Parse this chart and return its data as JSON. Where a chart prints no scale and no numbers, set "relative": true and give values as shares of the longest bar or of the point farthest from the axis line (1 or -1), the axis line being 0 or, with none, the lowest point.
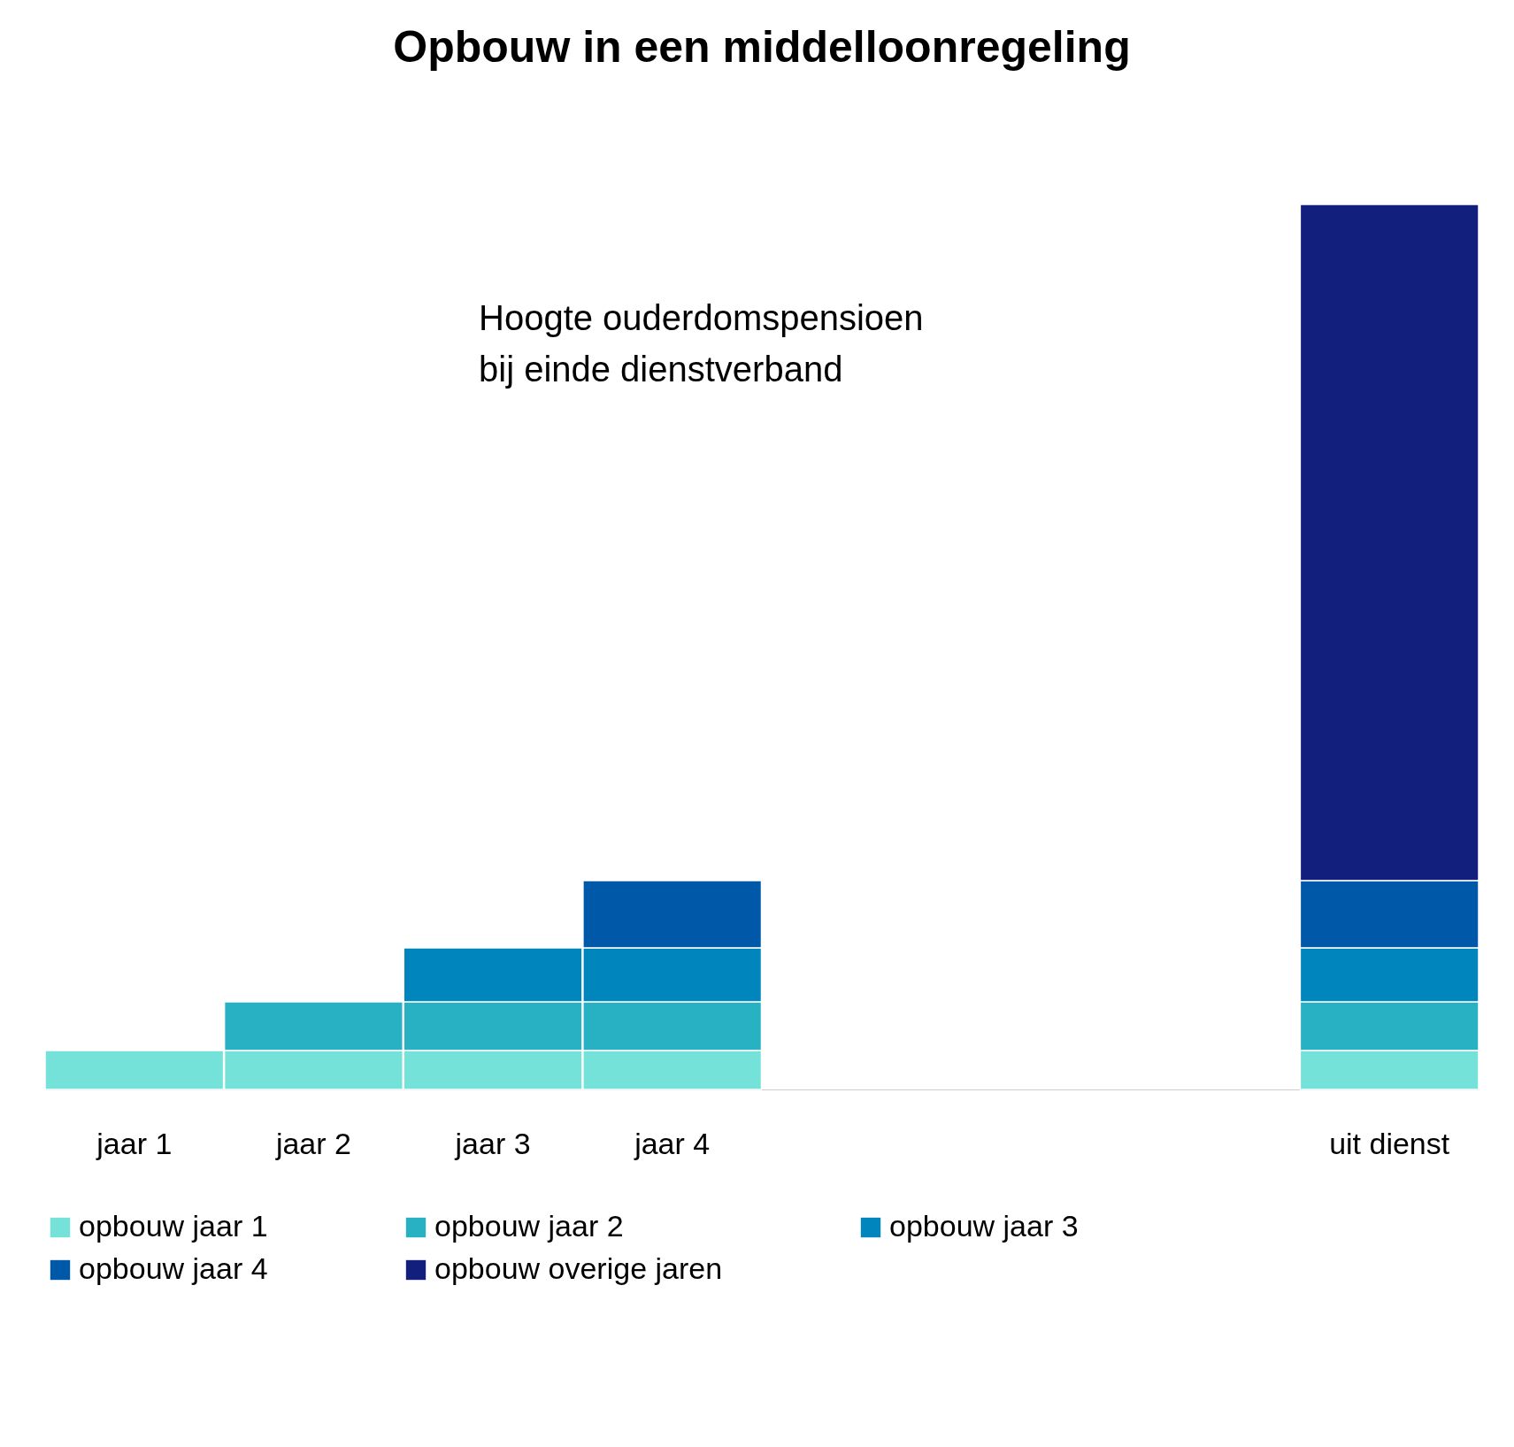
{
  "chart_data": {
    "type": "bar",
    "title": "Opbouw in een middelloonregeling",
    "annotations": [
      "Hoogte ouderdomspensioen\nbij einde dienstverband"
    ],
    "categories": [
      "jaar 1",
      "jaar 2",
      "jaar 3",
      "jaar 4",
      null,
      null,
      null,
      "uit dienst"
    ],
    "relative": true,
    "stacked": true,
    "legend": "bottom",
    "series": [
      {
        "name": "opbouw jaar 1",
        "color": "#74e2d8",
        "values": [
          0.044,
          0.044,
          0.044,
          0.044,
          null,
          null,
          null,
          0.044
        ]
      },
      {
        "name": "opbouw jaar 2",
        "color": "#28b0c3",
        "values": [
          null,
          0.055,
          0.055,
          0.055,
          null,
          null,
          null,
          0.055
        ]
      },
      {
        "name": "opbouw jaar 3",
        "color": "#0085bd",
        "values": [
          null,
          null,
          0.061,
          0.061,
          null,
          null,
          null,
          0.061
        ]
      },
      {
        "name": "opbouw jaar 4",
        "color": "#0058a8",
        "values": [
          null,
          null,
          null,
          0.076,
          null,
          null,
          null,
          0.076
        ]
      },
      {
        "name": "opbouw overige jaren",
        "color": "#131f7c",
        "values": [
          null,
          null,
          null,
          null,
          null,
          null,
          null,
          0.764
        ]
      }
    ]
  }
}
